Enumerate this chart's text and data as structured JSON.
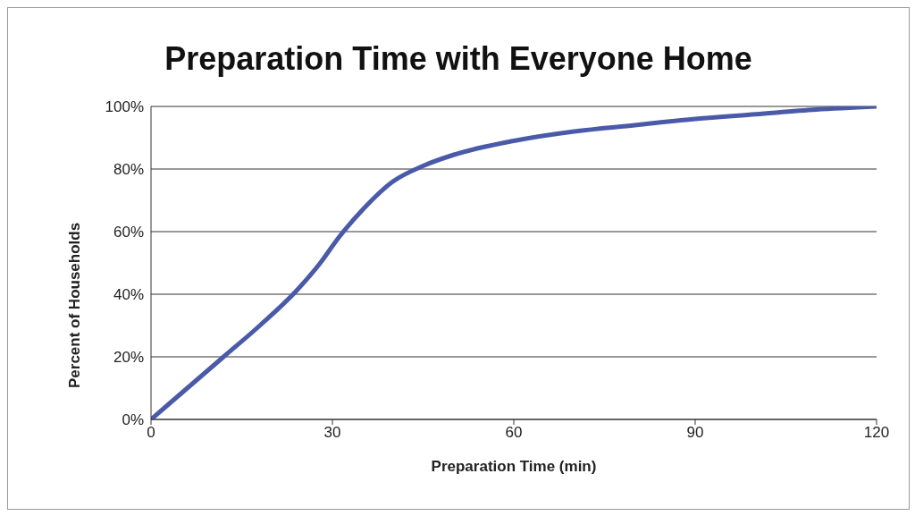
{
  "chart_data": {
    "type": "line",
    "title": "Preparation Time with Everyone Home",
    "xlabel": "Preparation Time (min)",
    "ylabel": "Percent of Households",
    "x": [
      0,
      6,
      12,
      18,
      24,
      28,
      31,
      35,
      40,
      45,
      50,
      60,
      70,
      80,
      90,
      100,
      110,
      120
    ],
    "series": [
      {
        "color": "#4a5aa8",
        "values": [
          0,
          10,
          20,
          30,
          41,
          50,
          58,
          67,
          76,
          81,
          84.5,
          89,
          92,
          94,
          96,
          97.5,
          99,
          100
        ]
      }
    ],
    "xlim": [
      0,
      120
    ],
    "xticks": [
      0,
      30,
      60,
      90,
      120
    ],
    "ylim": [
      0,
      100
    ],
    "yticks": [
      {
        "value": 0,
        "label": "0%"
      },
      {
        "value": 20,
        "label": "20%"
      },
      {
        "value": 40,
        "label": "40%"
      },
      {
        "value": 60,
        "label": "60%"
      },
      {
        "value": 80,
        "label": "80%"
      },
      {
        "value": 100,
        "label": "100%"
      }
    ],
    "grid": "y",
    "legend": false,
    "marker": "none",
    "line_style": "solid"
  }
}
